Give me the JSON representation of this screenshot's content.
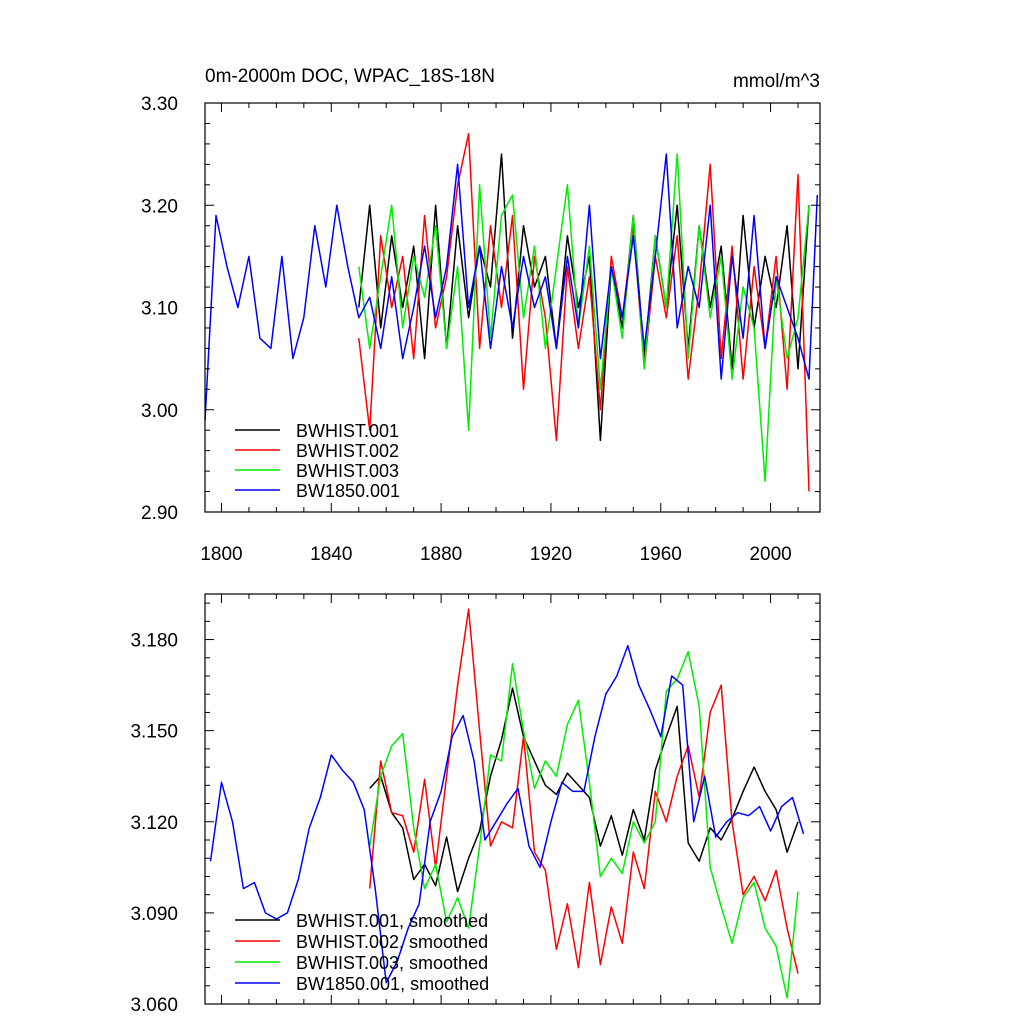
{
  "chart_data": [
    {
      "type": "line",
      "title": "0m-2000m DOC, WPAC_18S-18N",
      "units": "mmol/m^3",
      "xlim": [
        1794,
        2018
      ],
      "ylim": [
        2.9,
        3.3
      ],
      "x_ticks": [
        "1800",
        "1840",
        "1880",
        "1920",
        "1960",
        "2000"
      ],
      "y_ticks": [
        "3.30",
        "3.20",
        "3.10",
        "3.00",
        "2.90"
      ],
      "legend": "bottom-left",
      "series": [
        {
          "name": "BWHIST.001",
          "color": "#000000",
          "x": [
            1850,
            1854,
            1858,
            1862,
            1866,
            1870,
            1874,
            1878,
            1882,
            1886,
            1890,
            1894,
            1898,
            1902,
            1906,
            1910,
            1914,
            1918,
            1922,
            1926,
            1930,
            1934,
            1938,
            1942,
            1946,
            1950,
            1954,
            1958,
            1962,
            1966,
            1970,
            1974,
            1978,
            1982,
            1986,
            1990,
            1994,
            1998,
            2002,
            2006,
            2010,
            2014
          ],
          "values": [
            3.1,
            3.2,
            3.08,
            3.17,
            3.1,
            3.16,
            3.05,
            3.2,
            3.06,
            3.18,
            3.09,
            3.16,
            3.12,
            3.25,
            3.07,
            3.18,
            3.12,
            3.15,
            3.06,
            3.17,
            3.1,
            3.15,
            2.97,
            3.14,
            3.08,
            3.19,
            3.05,
            3.17,
            3.1,
            3.2,
            3.06,
            3.18,
            3.1,
            3.16,
            3.04,
            3.19,
            3.08,
            3.15,
            3.1,
            3.18,
            3.04,
            3.2
          ]
        },
        {
          "name": "BWHIST.002",
          "color": "#ff0000",
          "x": [
            1850,
            1854,
            1858,
            1862,
            1866,
            1870,
            1874,
            1878,
            1882,
            1886,
            1890,
            1894,
            1898,
            1902,
            1906,
            1910,
            1914,
            1918,
            1922,
            1926,
            1930,
            1934,
            1938,
            1942,
            1946,
            1950,
            1954,
            1958,
            1962,
            1966,
            1970,
            1974,
            1978,
            1982,
            1986,
            1990,
            1994,
            1998,
            2002,
            2006,
            2010,
            2014
          ],
          "values": [
            3.07,
            2.98,
            3.17,
            3.1,
            3.15,
            3.05,
            3.19,
            3.08,
            3.13,
            3.22,
            3.27,
            3.06,
            3.18,
            3.1,
            3.19,
            3.02,
            3.15,
            3.09,
            2.97,
            3.14,
            3.06,
            3.13,
            3.0,
            3.15,
            3.09,
            3.18,
            3.04,
            3.15,
            3.09,
            3.17,
            3.03,
            3.12,
            3.24,
            3.05,
            3.16,
            3.03,
            3.14,
            3.06,
            3.15,
            3.02,
            3.23,
            2.92
          ]
        },
        {
          "name": "BWHIST.003",
          "color": "#00ee00",
          "x": [
            1850,
            1854,
            1858,
            1862,
            1866,
            1870,
            1874,
            1878,
            1882,
            1886,
            1890,
            1894,
            1898,
            1902,
            1906,
            1910,
            1914,
            1918,
            1922,
            1926,
            1930,
            1934,
            1938,
            1942,
            1946,
            1950,
            1954,
            1958,
            1962,
            1966,
            1970,
            1974,
            1978,
            1982,
            1986,
            1990,
            1994,
            1998,
            2002,
            2006,
            2010,
            2014
          ],
          "values": [
            3.14,
            3.06,
            3.13,
            3.2,
            3.08,
            3.15,
            3.11,
            3.18,
            3.06,
            3.14,
            2.98,
            3.22,
            3.07,
            3.19,
            3.21,
            3.09,
            3.16,
            3.06,
            3.14,
            3.22,
            3.08,
            3.16,
            3.02,
            3.14,
            3.07,
            3.19,
            3.04,
            3.17,
            3.1,
            3.25,
            3.05,
            3.18,
            3.09,
            3.15,
            3.03,
            3.12,
            3.08,
            2.93,
            3.13,
            3.05,
            3.09,
            3.2
          ]
        },
        {
          "name": "BW1850.001",
          "color": "#0000ff",
          "x": [
            1794,
            1798,
            1802,
            1806,
            1810,
            1814,
            1818,
            1822,
            1826,
            1830,
            1834,
            1838,
            1842,
            1846,
            1850,
            1854,
            1858,
            1862,
            1866,
            1870,
            1874,
            1878,
            1882,
            1886,
            1890,
            1894,
            1898,
            1902,
            1906,
            1910,
            1914,
            1918,
            1922,
            1926,
            1930,
            1934,
            1938,
            1942,
            1946,
            1950,
            1954,
            1958,
            1962,
            1966,
            1970,
            1974,
            1978,
            1982,
            1986,
            1990,
            1994,
            1998,
            2002,
            2006,
            2010,
            2014,
            2017
          ],
          "values": [
            2.99,
            3.19,
            3.14,
            3.1,
            3.15,
            3.07,
            3.06,
            3.15,
            3.05,
            3.09,
            3.18,
            3.12,
            3.2,
            3.14,
            3.09,
            3.11,
            3.06,
            3.13,
            3.05,
            3.1,
            3.16,
            3.09,
            3.14,
            3.24,
            3.1,
            3.16,
            3.06,
            3.14,
            3.08,
            3.15,
            3.1,
            3.13,
            3.06,
            3.15,
            3.08,
            3.2,
            3.05,
            3.14,
            3.09,
            3.17,
            3.06,
            3.15,
            3.25,
            3.08,
            3.14,
            3.1,
            3.2,
            3.03,
            3.15,
            3.07,
            3.19,
            3.06,
            3.13,
            3.1,
            3.07,
            3.03,
            3.21
          ]
        }
      ]
    },
    {
      "type": "line",
      "xlim": [
        1794,
        2018
      ],
      "ylim": [
        3.06,
        3.195
      ],
      "x_ticks": [
        "1800",
        "1840",
        "1880",
        "1920",
        "1960",
        "2000"
      ],
      "y_ticks": [
        "3.180",
        "3.150",
        "3.120",
        "3.090",
        "3.060"
      ],
      "legend": "bottom-left",
      "series": [
        {
          "name": "BWHIST.001, smoothed",
          "color": "#000000",
          "x": [
            1854,
            1858,
            1862,
            1866,
            1870,
            1874,
            1878,
            1882,
            1886,
            1890,
            1894,
            1898,
            1902,
            1906,
            1910,
            1914,
            1918,
            1922,
            1926,
            1930,
            1934,
            1938,
            1942,
            1946,
            1950,
            1954,
            1958,
            1962,
            1966,
            1970,
            1974,
            1978,
            1982,
            1986,
            1990,
            1994,
            1998,
            2002,
            2006,
            2010
          ],
          "values": [
            3.131,
            3.135,
            3.123,
            3.118,
            3.101,
            3.106,
            3.099,
            3.115,
            3.097,
            3.108,
            3.117,
            3.135,
            3.147,
            3.164,
            3.148,
            3.14,
            3.132,
            3.129,
            3.136,
            3.132,
            3.128,
            3.112,
            3.122,
            3.109,
            3.124,
            3.114,
            3.137,
            3.148,
            3.158,
            3.113,
            3.107,
            3.118,
            3.114,
            3.121,
            3.13,
            3.138,
            3.13,
            3.124,
            3.11,
            3.12
          ]
        },
        {
          "name": "BWHIST.002, smoothed",
          "color": "#ff0000",
          "x": [
            1854,
            1858,
            1862,
            1866,
            1870,
            1874,
            1878,
            1882,
            1886,
            1890,
            1894,
            1898,
            1902,
            1906,
            1910,
            1914,
            1918,
            1922,
            1926,
            1930,
            1934,
            1938,
            1942,
            1946,
            1950,
            1954,
            1958,
            1962,
            1966,
            1970,
            1974,
            1978,
            1982,
            1986,
            1990,
            1994,
            1998,
            2002,
            2006,
            2010
          ],
          "values": [
            3.098,
            3.14,
            3.123,
            3.122,
            3.11,
            3.134,
            3.105,
            3.135,
            3.165,
            3.19,
            3.15,
            3.112,
            3.12,
            3.118,
            3.148,
            3.11,
            3.104,
            3.078,
            3.093,
            3.072,
            3.1,
            3.073,
            3.092,
            3.08,
            3.11,
            3.098,
            3.13,
            3.12,
            3.135,
            3.145,
            3.128,
            3.156,
            3.165,
            3.12,
            3.096,
            3.102,
            3.094,
            3.104,
            3.085,
            3.07
          ]
        },
        {
          "name": "BWHIST.003, smoothed",
          "color": "#00ee00",
          "x": [
            1854,
            1858,
            1862,
            1866,
            1870,
            1874,
            1878,
            1882,
            1886,
            1890,
            1894,
            1898,
            1902,
            1906,
            1910,
            1914,
            1918,
            1922,
            1926,
            1930,
            1934,
            1938,
            1942,
            1946,
            1950,
            1954,
            1958,
            1962,
            1966,
            1970,
            1974,
            1978,
            1982,
            1986,
            1990,
            1994,
            1998,
            2002,
            2006,
            2010
          ],
          "values": [
            3.112,
            3.135,
            3.145,
            3.149,
            3.118,
            3.098,
            3.106,
            3.087,
            3.095,
            3.085,
            3.112,
            3.142,
            3.14,
            3.172,
            3.15,
            3.131,
            3.14,
            3.135,
            3.152,
            3.16,
            3.133,
            3.102,
            3.108,
            3.103,
            3.12,
            3.113,
            3.12,
            3.163,
            3.167,
            3.176,
            3.158,
            3.105,
            3.092,
            3.08,
            3.095,
            3.1,
            3.085,
            3.079,
            3.062,
            3.097
          ]
        },
        {
          "name": "BW1850.001, smoothed",
          "color": "#0000ff",
          "x": [
            1796,
            1800,
            1804,
            1808,
            1812,
            1816,
            1820,
            1824,
            1828,
            1832,
            1836,
            1840,
            1844,
            1848,
            1852,
            1856,
            1860,
            1864,
            1868,
            1872,
            1876,
            1880,
            1884,
            1888,
            1892,
            1896,
            1900,
            1904,
            1908,
            1912,
            1916,
            1920,
            1924,
            1928,
            1932,
            1936,
            1940,
            1944,
            1948,
            1952,
            1956,
            1960,
            1964,
            1968,
            1972,
            1976,
            1980,
            1984,
            1988,
            1992,
            1996,
            2000,
            2004,
            2008,
            2012
          ],
          "values": [
            3.107,
            3.133,
            3.12,
            3.098,
            3.1,
            3.09,
            3.088,
            3.09,
            3.101,
            3.118,
            3.128,
            3.142,
            3.137,
            3.133,
            3.124,
            3.098,
            3.067,
            3.074,
            3.085,
            3.093,
            3.12,
            3.13,
            3.148,
            3.155,
            3.14,
            3.114,
            3.12,
            3.126,
            3.131,
            3.112,
            3.105,
            3.12,
            3.133,
            3.13,
            3.13,
            3.148,
            3.162,
            3.168,
            3.178,
            3.165,
            3.157,
            3.148,
            3.168,
            3.165,
            3.12,
            3.135,
            3.115,
            3.12,
            3.123,
            3.122,
            3.125,
            3.117,
            3.125,
            3.128,
            3.116
          ]
        }
      ]
    }
  ]
}
